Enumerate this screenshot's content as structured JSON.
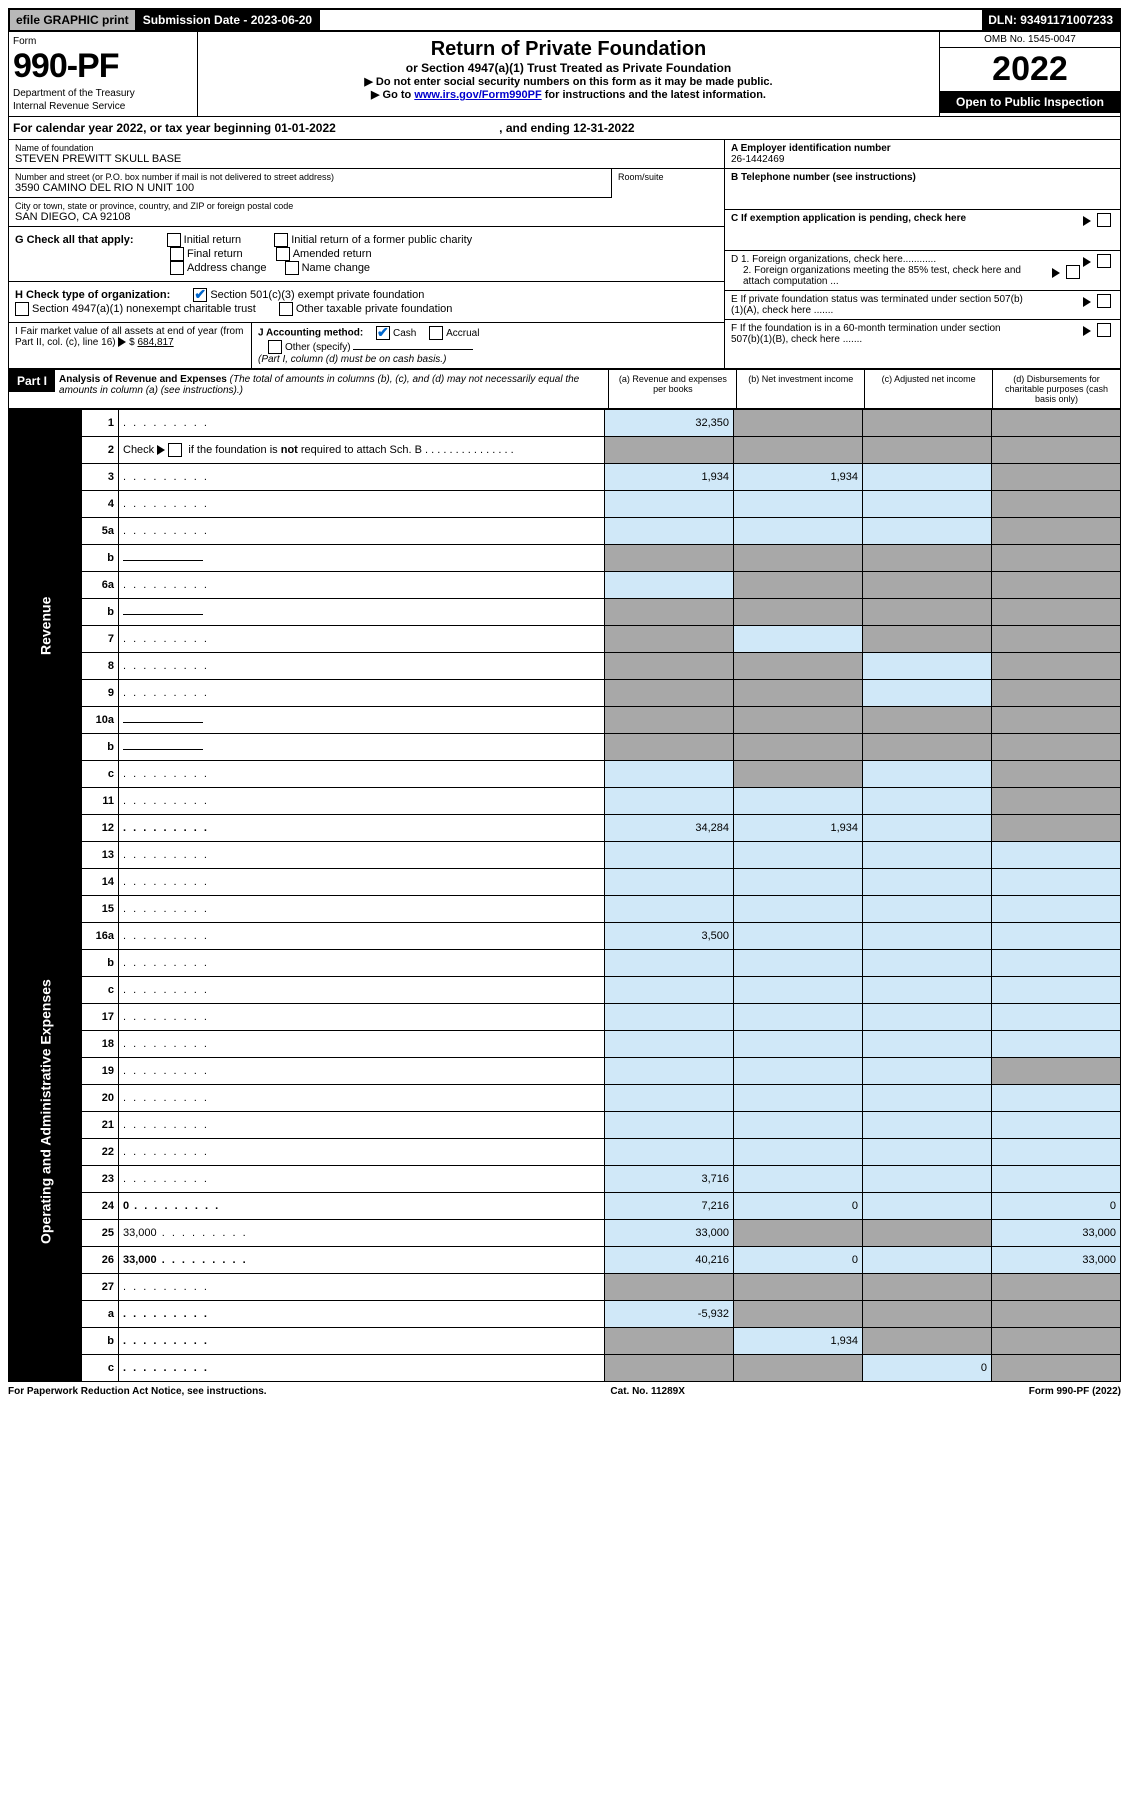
{
  "topbar": {
    "efile": "efile GRAPHIC print",
    "subdate_label": "Submission Date - ",
    "subdate": "2023-06-20",
    "dln_label": "DLN: ",
    "dln": "93491171007233"
  },
  "header": {
    "form_label": "Form",
    "form_num": "990-PF",
    "dept1": "Department of the Treasury",
    "dept2": "Internal Revenue Service",
    "title": "Return of Private Foundation",
    "subtitle": "or Section 4947(a)(1) Trust Treated as Private Foundation",
    "instr1": "▶ Do not enter social security numbers on this form as it may be made public.",
    "instr2_pre": "▶ Go to ",
    "instr2_link": "www.irs.gov/Form990PF",
    "instr2_post": " for instructions and the latest information.",
    "omb": "OMB No. 1545-0047",
    "year": "2022",
    "open": "Open to Public Inspection"
  },
  "calyear": {
    "text": "For calendar year 2022, or tax year beginning 01-01-2022",
    "ending": ", and ending 12-31-2022"
  },
  "entity": {
    "name_label": "Name of foundation",
    "name": "STEVEN PREWITT SKULL BASE",
    "addr_label": "Number and street (or P.O. box number if mail is not delivered to street address)",
    "addr": "3590 CAMINO DEL RIO N UNIT 100",
    "room_label": "Room/suite",
    "city_label": "City or town, state or province, country, and ZIP or foreign postal code",
    "city": "SAN DIEGO, CA  92108",
    "ein_label": "A Employer identification number",
    "ein": "26-1442469",
    "phone_label": "B Telephone number (see instructions)",
    "c_label": "C If exemption application is pending, check here",
    "d1": "D 1. Foreign organizations, check here............",
    "d2": "2. Foreign organizations meeting the 85% test, check here and attach computation ...",
    "e_label": "E  If private foundation status was terminated under section 507(b)(1)(A), check here .......",
    "f_label": "F  If the foundation is in a 60-month termination under section 507(b)(1)(B), check here .......",
    "g_label": "G Check all that apply:",
    "g_opts": [
      "Initial return",
      "Initial return of a former public charity",
      "Final return",
      "Amended return",
      "Address change",
      "Name change"
    ],
    "h_label": "H Check type of organization:",
    "h1": "Section 501(c)(3) exempt private foundation",
    "h2": "Section 4947(a)(1) nonexempt charitable trust",
    "h3": "Other taxable private foundation",
    "i_label": "I Fair market value of all assets at end of year (from Part II, col. (c), line 16)",
    "i_val": "684,817",
    "j_label": "J Accounting method:",
    "j1": "Cash",
    "j2": "Accrual",
    "j3": "Other (specify)",
    "j_note": "(Part I, column (d) must be on cash basis.)"
  },
  "part1": {
    "label": "Part I",
    "title": "Analysis of Revenue and Expenses",
    "note": "(The total of amounts in columns (b), (c), and (d) may not necessarily equal the amounts in column (a) (see instructions).)",
    "col_a": "(a)   Revenue and expenses per books",
    "col_b": "(b)   Net investment income",
    "col_c": "(c)   Adjusted net income",
    "col_d": "(d)  Disbursements for charitable purposes (cash basis only)",
    "side_rev": "Revenue",
    "side_exp": "Operating and Administrative Expenses"
  },
  "rows": [
    {
      "n": "1",
      "d": "",
      "a": "32,350",
      "b": "",
      "c": "",
      "grey": [
        "b",
        "c",
        "d"
      ]
    },
    {
      "n": "2",
      "d": "",
      "a": "",
      "b": "",
      "c": "",
      "grey": [
        "a",
        "b",
        "c",
        "d"
      ],
      "nodots": true,
      "bold_frag": "not"
    },
    {
      "n": "3",
      "d": "",
      "a": "1,934",
      "b": "1,934",
      "c": "",
      "grey": [
        "d"
      ]
    },
    {
      "n": "4",
      "d": "",
      "a": "",
      "b": "",
      "c": "",
      "grey": [
        "d"
      ]
    },
    {
      "n": "5a",
      "d": "",
      "a": "",
      "b": "",
      "c": "",
      "grey": [
        "d"
      ]
    },
    {
      "n": "b",
      "d": "",
      "a": "",
      "b": "",
      "c": "",
      "grey": [
        "a",
        "b",
        "c",
        "d"
      ],
      "inline": true
    },
    {
      "n": "6a",
      "d": "",
      "a": "",
      "b": "",
      "c": "",
      "grey": [
        "b",
        "c",
        "d"
      ]
    },
    {
      "n": "b",
      "d": "",
      "a": "",
      "b": "",
      "c": "",
      "grey": [
        "a",
        "b",
        "c",
        "d"
      ],
      "inline": true
    },
    {
      "n": "7",
      "d": "",
      "a": "",
      "b": "",
      "c": "",
      "grey": [
        "a",
        "c",
        "d"
      ]
    },
    {
      "n": "8",
      "d": "",
      "a": "",
      "b": "",
      "c": "",
      "grey": [
        "a",
        "b",
        "d"
      ]
    },
    {
      "n": "9",
      "d": "",
      "a": "",
      "b": "",
      "c": "",
      "grey": [
        "a",
        "b",
        "d"
      ]
    },
    {
      "n": "10a",
      "d": "",
      "a": "",
      "b": "",
      "c": "",
      "grey": [
        "a",
        "b",
        "c",
        "d"
      ],
      "inline": true
    },
    {
      "n": "b",
      "d": "",
      "a": "",
      "b": "",
      "c": "",
      "grey": [
        "a",
        "b",
        "c",
        "d"
      ],
      "inline": true
    },
    {
      "n": "c",
      "d": "",
      "a": "",
      "b": "",
      "c": "",
      "grey": [
        "b",
        "d"
      ]
    },
    {
      "n": "11",
      "d": "",
      "a": "",
      "b": "",
      "c": "",
      "grey": [
        "d"
      ]
    },
    {
      "n": "12",
      "d": "",
      "a": "34,284",
      "b": "1,934",
      "c": "",
      "grey": [
        "d"
      ],
      "bold": true
    },
    {
      "n": "13",
      "d": "",
      "a": "",
      "b": "",
      "c": ""
    },
    {
      "n": "14",
      "d": "",
      "a": "",
      "b": "",
      "c": ""
    },
    {
      "n": "15",
      "d": "",
      "a": "",
      "b": "",
      "c": ""
    },
    {
      "n": "16a",
      "d": "",
      "a": "3,500",
      "b": "",
      "c": ""
    },
    {
      "n": "b",
      "d": "",
      "a": "",
      "b": "",
      "c": ""
    },
    {
      "n": "c",
      "d": "",
      "a": "",
      "b": "",
      "c": ""
    },
    {
      "n": "17",
      "d": "",
      "a": "",
      "b": "",
      "c": ""
    },
    {
      "n": "18",
      "d": "",
      "a": "",
      "b": "",
      "c": ""
    },
    {
      "n": "19",
      "d": "",
      "a": "",
      "b": "",
      "c": "",
      "grey": [
        "d"
      ]
    },
    {
      "n": "20",
      "d": "",
      "a": "",
      "b": "",
      "c": ""
    },
    {
      "n": "21",
      "d": "",
      "a": "",
      "b": "",
      "c": ""
    },
    {
      "n": "22",
      "d": "",
      "a": "",
      "b": "",
      "c": ""
    },
    {
      "n": "23",
      "d": "",
      "a": "3,716",
      "b": "",
      "c": ""
    },
    {
      "n": "24",
      "d": "0",
      "a": "7,216",
      "b": "0",
      "c": "",
      "bold": true
    },
    {
      "n": "25",
      "d": "33,000",
      "a": "33,000",
      "b": "",
      "c": "",
      "grey": [
        "b",
        "c"
      ]
    },
    {
      "n": "26",
      "d": "33,000",
      "a": "40,216",
      "b": "0",
      "c": "",
      "bold": true
    },
    {
      "n": "27",
      "d": "",
      "a": "",
      "b": "",
      "c": "",
      "grey": [
        "a",
        "b",
        "c",
        "d"
      ]
    },
    {
      "n": "a",
      "d": "",
      "a": "-5,932",
      "b": "",
      "c": "",
      "grey": [
        "b",
        "c",
        "d"
      ],
      "bold": true
    },
    {
      "n": "b",
      "d": "",
      "a": "",
      "b": "1,934",
      "c": "",
      "grey": [
        "a",
        "c",
        "d"
      ],
      "bold": true
    },
    {
      "n": "c",
      "d": "",
      "a": "",
      "b": "",
      "c": "0",
      "grey": [
        "a",
        "b",
        "d"
      ],
      "bold": true
    }
  ],
  "footer": {
    "left": "For Paperwork Reduction Act Notice, see instructions.",
    "mid": "Cat. No. 11289X",
    "right": "Form 990-PF (2022)"
  },
  "colors": {
    "blue_cell": "#d0e8f8",
    "grey_cell": "#a8a8a8",
    "link": "#0000cc",
    "check": "#0066cc"
  }
}
